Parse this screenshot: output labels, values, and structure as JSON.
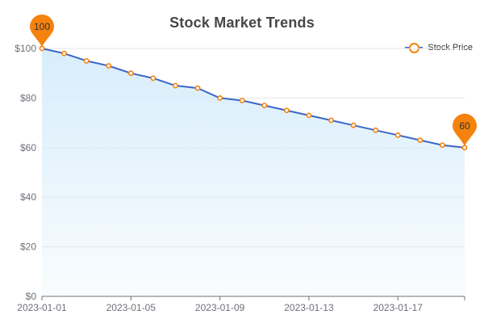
{
  "chart_data": {
    "type": "line",
    "title": "Stock Market Trends",
    "xlabel": "",
    "ylabel": "",
    "x": [
      "2023-01-01",
      "2023-01-02",
      "2023-01-03",
      "2023-01-04",
      "2023-01-05",
      "2023-01-06",
      "2023-01-07",
      "2023-01-08",
      "2023-01-09",
      "2023-01-10",
      "2023-01-11",
      "2023-01-12",
      "2023-01-13",
      "2023-01-14",
      "2023-01-15",
      "2023-01-16",
      "2023-01-17",
      "2023-01-18",
      "2023-01-19",
      "2023-01-20"
    ],
    "x_tick_labels": [
      "2023-01-01",
      "2023-01-05",
      "2023-01-09",
      "2023-01-13",
      "2023-01-17"
    ],
    "y_tick_labels": [
      "$0",
      "$20",
      "$40",
      "$60",
      "$80",
      "$100"
    ],
    "ylim": [
      0,
      100
    ],
    "series": [
      {
        "name": "Stock Price",
        "values": [
          100,
          98,
          95,
          93,
          90,
          88,
          85,
          84,
          80,
          79,
          77,
          75,
          73,
          71,
          69,
          67,
          65,
          63,
          61,
          60
        ]
      }
    ],
    "markers": [
      {
        "label": "100",
        "type": "max"
      },
      {
        "label": "60",
        "type": "min"
      }
    ],
    "legend_position": "top-right",
    "grid": true,
    "area_fill": true,
    "colors": {
      "line": "#3b67c8",
      "point": "#f4820c",
      "marker": "#f4820c",
      "grid": "#e6e6e6",
      "area": "#d6ecfb",
      "axis_text": "#6e7079"
    }
  }
}
